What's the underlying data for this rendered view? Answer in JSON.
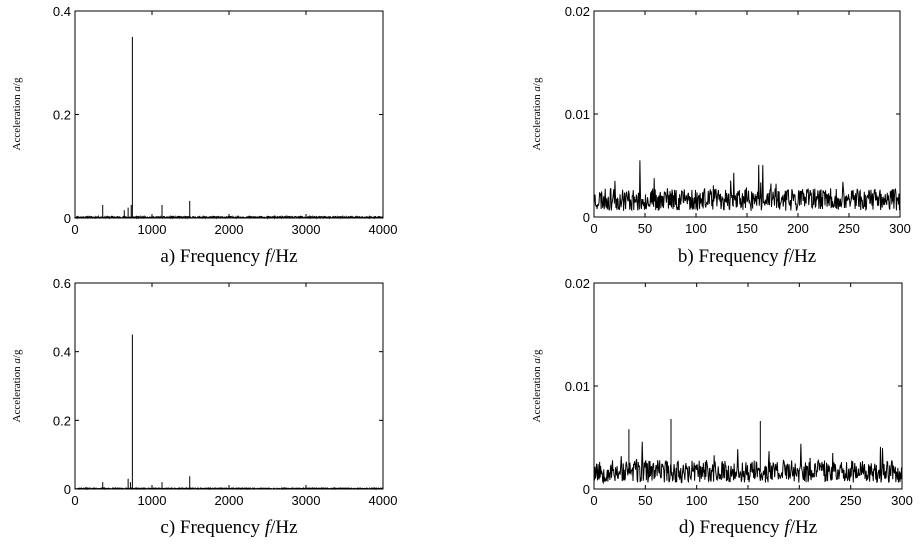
{
  "chart_data": [
    {
      "type": "line",
      "caption": {
        "prefix": "a) Frequency ",
        "var": "f",
        "unit": "/Hz"
      },
      "ylabel": {
        "prefix": "Acceleration ",
        "var": "a",
        "unit": "/g"
      },
      "xlim": [
        0,
        4000
      ],
      "ylim": [
        0,
        0.4
      ],
      "xticks": [
        "0",
        "1000",
        "2000",
        "3000",
        "4000"
      ],
      "yticks": [
        "0",
        "0.2",
        "0.4"
      ],
      "baseline": 0.003,
      "peaks": [
        [
          360,
          0.025
        ],
        [
          640,
          0.015
        ],
        [
          690,
          0.02
        ],
        [
          730,
          0.025
        ],
        [
          745,
          0.35
        ],
        [
          1130,
          0.025
        ],
        [
          1490,
          0.033
        ]
      ],
      "samples": 800,
      "seed": 11
    },
    {
      "type": "line",
      "caption": {
        "prefix": "b) Frequency ",
        "var": "f",
        "unit": "/Hz"
      },
      "ylabel": {
        "prefix": "Acceleration ",
        "var": "a",
        "unit": "/g"
      },
      "xlim": [
        0,
        300
      ],
      "ylim": [
        0,
        0.02
      ],
      "xticks": [
        "0",
        "50",
        "100",
        "150",
        "200",
        "250",
        "300"
      ],
      "yticks": [
        "0",
        "0.01",
        "0.02"
      ],
      "noise_level": 0.002,
      "noise_max": 0.0055,
      "samples": 600,
      "seed": 23
    },
    {
      "type": "line",
      "caption": {
        "prefix": "c) Frequency ",
        "var": "f",
        "unit": "/Hz"
      },
      "ylabel": {
        "prefix": "Acceleration ",
        "var": "a",
        "unit": "/g"
      },
      "xlim": [
        0,
        4000
      ],
      "ylim": [
        0,
        0.6
      ],
      "xticks": [
        "0",
        "1000",
        "2000",
        "3000",
        "4000"
      ],
      "yticks": [
        "0",
        "0.2",
        "0.4",
        "0.6"
      ],
      "baseline": 0.003,
      "peaks": [
        [
          360,
          0.02
        ],
        [
          690,
          0.03
        ],
        [
          720,
          0.02
        ],
        [
          745,
          0.45
        ],
        [
          1130,
          0.02
        ],
        [
          1490,
          0.037
        ]
      ],
      "samples": 800,
      "seed": 37
    },
    {
      "type": "line",
      "caption": {
        "prefix": "d) Frequency ",
        "var": "f",
        "unit": "/Hz"
      },
      "ylabel": {
        "prefix": "Acceleration ",
        "var": "a",
        "unit": "/g"
      },
      "xlim": [
        0,
        300
      ],
      "ylim": [
        0,
        0.02
      ],
      "xticks": [
        "0",
        "50",
        "100",
        "150",
        "200",
        "250",
        "300"
      ],
      "yticks": [
        "0",
        "0.01",
        "0.02"
      ],
      "noise_level": 0.002,
      "noise_max": 0.0048,
      "spikes": [
        [
          75,
          0.0068
        ],
        [
          162,
          0.0066
        ],
        [
          34,
          0.0058
        ]
      ],
      "samples": 600,
      "seed": 53
    }
  ]
}
